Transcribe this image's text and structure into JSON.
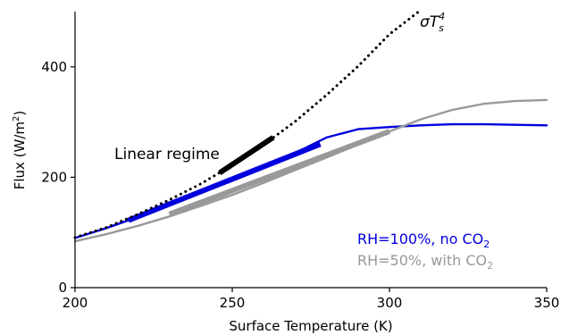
{
  "chart_data": {
    "type": "line",
    "xlabel": "Surface Temperature (K)",
    "ylabel_main": "Flux (W/m",
    "ylabel_sup": "2",
    "ylabel_tail": ")",
    "xlim": [
      200,
      350
    ],
    "ylim": [
      0,
      500
    ],
    "xticks": [
      200,
      250,
      300,
      350
    ],
    "yticks": [
      0,
      200,
      400
    ],
    "grid": false,
    "colors": {
      "blue": "#0000dd",
      "gray": "#999999",
      "black": "#000000"
    },
    "series": [
      {
        "label_main": "RH=100%, no CO",
        "label_sub": "2",
        "color": "#0000dd",
        "x": [
          200,
          210,
          220,
          230,
          240,
          250,
          260,
          270,
          280,
          290,
          300,
          310,
          320,
          330,
          340,
          350
        ],
        "y": [
          90,
          108,
          128,
          149,
          172,
          196,
          220,
          244,
          272,
          287,
          291,
          294,
          296,
          296,
          295,
          294
        ]
      },
      {
        "label_main": "RH=50%, with CO",
        "label_sub": "2",
        "color": "#999999",
        "x": [
          200,
          210,
          220,
          230,
          240,
          250,
          260,
          270,
          280,
          290,
          300,
          310,
          320,
          330,
          340,
          350
        ],
        "y": [
          84,
          97,
          112,
          129,
          148,
          168,
          190,
          213,
          236,
          259,
          283,
          305,
          322,
          333,
          338,
          340
        ]
      },
      {
        "label_main": "σT",
        "label_sup": "4",
        "label_sub": "s",
        "color": "#000000",
        "style": "dotted",
        "x": [
          200,
          210,
          220,
          230,
          240,
          250,
          260,
          270,
          280,
          290,
          300,
          310
        ],
        "y": [
          91,
          109,
          133,
          159,
          188,
          222,
          259,
          301,
          349,
          401,
          459,
          503
        ]
      }
    ],
    "linear_fits": [
      {
        "color": "#0000dd",
        "x": [
          217,
          278
        ],
        "y": [
          122,
          260
        ]
      },
      {
        "color": "#999999",
        "x": [
          230,
          300
        ],
        "y": [
          133,
          283
        ]
      },
      {
        "color": "#000000",
        "x": [
          246,
          263
        ],
        "y": [
          208,
          272
        ]
      }
    ],
    "annotation": "Linear regime"
  }
}
